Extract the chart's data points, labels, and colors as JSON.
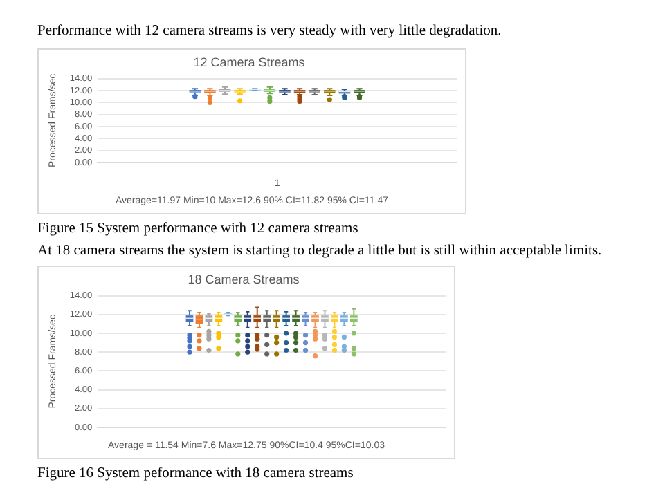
{
  "chart_data": [
    {
      "type": "box",
      "title": "12 Camera Streams",
      "ylabel": "Processed Frams/sec",
      "categories": [
        "1"
      ],
      "ylim": [
        0,
        14
      ],
      "yticks": [
        {
          "value": 0,
          "label": "0.00"
        },
        {
          "value": 2,
          "label": "2.00"
        },
        {
          "value": 4,
          "label": "4.00"
        },
        {
          "value": 6,
          "label": "6.00"
        },
        {
          "value": 8,
          "label": "8.00"
        },
        {
          "value": 10,
          "label": "10.00"
        },
        {
          "value": 12,
          "label": "12.00"
        },
        {
          "value": 14,
          "label": "14.00"
        }
      ],
      "grid": "y",
      "legend": false,
      "annotations": [
        "Performance with 12 camera streams is very steady with very little degradation.",
        "Average=11.97  Min=10  Max=12.6  90% CI=11.82  95% CI=11.47",
        "Figure 15 System performance with 12 camera streams"
      ],
      "series": [
        {
          "color": "#4472c4",
          "boxes": [
            {
              "low": 11.2,
              "q1": 11.7,
              "median": 11.9,
              "q3": 12.1,
              "high": 12.3,
              "outliers": [
                11.0
              ]
            }
          ]
        },
        {
          "color": "#ed7d31",
          "boxes": [
            {
              "low": 11.2,
              "q1": 11.6,
              "median": 11.9,
              "q3": 12.1,
              "high": 12.3,
              "outliers": [
                10.0,
                10.8
              ]
            }
          ]
        },
        {
          "color": "#a5a5a5",
          "boxes": [
            {
              "low": 11.4,
              "q1": 11.8,
              "median": 12.0,
              "q3": 12.3,
              "high": 12.6
            }
          ]
        },
        {
          "color": "#ffc000",
          "boxes": [
            {
              "low": 11.4,
              "q1": 11.7,
              "median": 11.9,
              "q3": 12.1,
              "high": 12.3,
              "outliers": [
                10.3
              ]
            }
          ]
        },
        {
          "color": "#5b9bd5",
          "boxes": [
            {
              "low": 12.1,
              "q1": 12.1,
              "median": 12.2,
              "q3": 12.3,
              "high": 12.3
            }
          ]
        },
        {
          "color": "#70ad47",
          "boxes": [
            {
              "low": 11.5,
              "q1": 11.8,
              "median": 12.0,
              "q3": 12.2,
              "high": 12.6,
              "outliers": [
                10.2,
                10.8
              ]
            }
          ]
        },
        {
          "color": "#264478",
          "boxes": [
            {
              "low": 11.3,
              "q1": 11.7,
              "median": 11.9,
              "q3": 12.1,
              "high": 12.3
            }
          ]
        },
        {
          "color": "#9e480e",
          "boxes": [
            {
              "low": 11.3,
              "q1": 11.6,
              "median": 11.9,
              "q3": 12.1,
              "high": 12.3,
              "outliers": [
                10.2,
                10.6,
                11.0
              ]
            }
          ]
        },
        {
          "color": "#636363",
          "boxes": [
            {
              "low": 11.3,
              "q1": 11.7,
              "median": 11.9,
              "q3": 12.1,
              "high": 12.3
            }
          ]
        },
        {
          "color": "#997300",
          "boxes": [
            {
              "low": 11.2,
              "q1": 11.6,
              "median": 11.9,
              "q3": 12.1,
              "high": 12.3,
              "outliers": [
                10.5
              ]
            }
          ]
        },
        {
          "color": "#255e91",
          "boxes": [
            {
              "low": 11.2,
              "q1": 11.5,
              "median": 11.8,
              "q3": 12.0,
              "high": 12.2,
              "outliers": [
                10.8,
                11.0
              ]
            }
          ]
        },
        {
          "color": "#43682b",
          "boxes": [
            {
              "low": 11.2,
              "q1": 11.6,
              "median": 11.9,
              "q3": 12.1,
              "high": 12.3,
              "outliers": [
                10.8,
                11.0
              ]
            }
          ]
        }
      ]
    },
    {
      "type": "box",
      "title": "18 Camera Streams",
      "ylabel": "Processed Frams/sec",
      "categories": [
        null
      ],
      "ylim": [
        0,
        14
      ],
      "yticks": [
        {
          "value": 0,
          "label": "0.00"
        },
        {
          "value": 2,
          "label": "2.00"
        },
        {
          "value": 4,
          "label": "4.00"
        },
        {
          "value": 6,
          "label": "6.00"
        },
        {
          "value": 8,
          "label": "8.00"
        },
        {
          "value": 10,
          "label": "10.00"
        },
        {
          "value": 12,
          "label": "12.00"
        },
        {
          "value": 14,
          "label": "14.00"
        }
      ],
      "grid": "y",
      "legend": false,
      "tick_labels": "y",
      "annotations": [
        "At 18 camera streams the system is starting to degrade a little but is still within acceptable limits.",
        "Average = 11.54 Min=7.6  Max=12.75  90%CI=10.4  95%CI=10.03",
        "Figure 16 System peformance with 18 camera streams"
      ],
      "series": [
        {
          "color": "#4472c4",
          "boxes": [
            {
              "low": 10.8,
              "q1": 11.2,
              "median": 11.6,
              "q3": 11.9,
              "high": 12.4,
              "outliers": [
                8.0,
                8.6,
                9.2,
                9.5,
                9.8
              ]
            }
          ]
        },
        {
          "color": "#ed7d31",
          "boxes": [
            {
              "low": 10.6,
              "q1": 11.0,
              "median": 11.5,
              "q3": 11.9,
              "high": 12.2,
              "outliers": [
                8.4,
                9.2,
                9.8
              ]
            }
          ]
        },
        {
          "color": "#a5a5a5",
          "boxes": [
            {
              "low": 10.8,
              "q1": 11.2,
              "median": 11.6,
              "q3": 11.9,
              "high": 12.1,
              "outliers": [
                8.2,
                9.4,
                9.8,
                10.2
              ]
            }
          ]
        },
        {
          "color": "#ffc000",
          "boxes": [
            {
              "low": 10.8,
              "q1": 11.2,
              "median": 11.6,
              "q3": 11.9,
              "high": 12.2,
              "outliers": [
                8.4,
                9.6,
                10.0
              ]
            }
          ]
        },
        {
          "color": "#5b9bd5",
          "boxes": [
            {
              "low": 11.9,
              "q1": 12.0,
              "median": 12.0,
              "q3": 12.1,
              "high": 12.2
            }
          ]
        },
        {
          "color": "#70ad47",
          "boxes": [
            {
              "low": 10.8,
              "q1": 11.2,
              "median": 11.6,
              "q3": 11.9,
              "high": 12.2,
              "outliers": [
                7.8,
                9.2,
                9.8
              ]
            }
          ]
        },
        {
          "color": "#264478",
          "boxes": [
            {
              "low": 10.6,
              "q1": 11.2,
              "median": 11.6,
              "q3": 11.9,
              "high": 12.3,
              "outliers": [
                8.0,
                8.6,
                9.2,
                9.8
              ]
            }
          ]
        },
        {
          "color": "#9e480e",
          "boxes": [
            {
              "low": 10.6,
              "q1": 11.2,
              "median": 11.6,
              "q3": 11.9,
              "high": 12.75,
              "outliers": [
                8.3,
                8.6,
                9.4,
                9.8
              ]
            }
          ]
        },
        {
          "color": "#636363",
          "boxes": [
            {
              "low": 10.6,
              "q1": 11.2,
              "median": 11.6,
              "q3": 11.9,
              "high": 12.4,
              "outliers": [
                7.8,
                8.8,
                9.8
              ]
            }
          ]
        },
        {
          "color": "#997300",
          "boxes": [
            {
              "low": 10.6,
              "q1": 11.2,
              "median": 11.6,
              "q3": 11.9,
              "high": 12.4,
              "outliers": [
                7.8,
                9.0,
                9.6
              ]
            }
          ]
        },
        {
          "color": "#255e91",
          "boxes": [
            {
              "low": 10.8,
              "q1": 11.2,
              "median": 11.6,
              "q3": 11.9,
              "high": 12.3,
              "outliers": [
                8.2,
                9.0,
                10.0
              ]
            }
          ]
        },
        {
          "color": "#43682b",
          "boxes": [
            {
              "low": 10.8,
              "q1": 11.2,
              "median": 11.6,
              "q3": 11.9,
              "high": 12.4,
              "outliers": [
                8.2,
                9.0,
                9.6,
                10.0
              ]
            }
          ]
        },
        {
          "color": "#698ed0",
          "boxes": [
            {
              "low": 10.8,
              "q1": 11.2,
              "median": 11.6,
              "q3": 11.9,
              "high": 12.2,
              "outliers": [
                8.2,
                9.0,
                9.8
              ]
            }
          ]
        },
        {
          "color": "#f1975a",
          "boxes": [
            {
              "low": 10.6,
              "q1": 11.2,
              "median": 11.6,
              "q3": 11.9,
              "high": 12.2,
              "outliers": [
                7.6,
                9.4,
                9.8,
                10.2
              ]
            }
          ]
        },
        {
          "color": "#b7b7b7",
          "boxes": [
            {
              "low": 10.6,
              "q1": 11.2,
              "median": 11.6,
              "q3": 11.9,
              "high": 12.4,
              "outliers": [
                8.4,
                9.4,
                9.8
              ]
            }
          ]
        },
        {
          "color": "#ffcd33",
          "boxes": [
            {
              "low": 10.6,
              "q1": 11.2,
              "median": 11.6,
              "q3": 11.9,
              "high": 12.2,
              "outliers": [
                8.2,
                8.8,
                9.6,
                10.2
              ]
            }
          ]
        },
        {
          "color": "#7cafdd",
          "boxes": [
            {
              "low": 10.8,
              "q1": 11.2,
              "median": 11.6,
              "q3": 11.9,
              "high": 12.2,
              "outliers": [
                8.2,
                8.6,
                9.6
              ]
            }
          ]
        },
        {
          "color": "#8cc168",
          "boxes": [
            {
              "low": 10.8,
              "q1": 11.2,
              "median": 11.6,
              "q3": 11.9,
              "high": 12.6,
              "outliers": [
                7.8,
                8.4,
                10.0
              ]
            }
          ]
        }
      ]
    }
  ]
}
